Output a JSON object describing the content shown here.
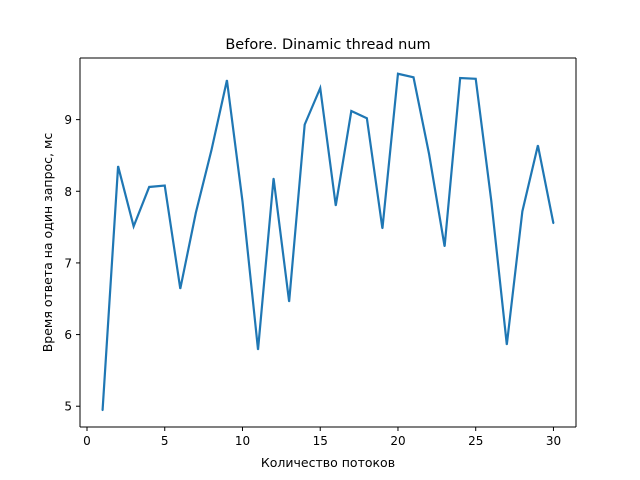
{
  "chart_data": {
    "type": "line",
    "title": "Before. Dinamic thread num",
    "xlabel": "Количество потоков",
    "ylabel": "Время ответа на один запрос, мс",
    "xlim": [
      -0.45,
      31.45
    ],
    "ylim": [
      4.71,
      9.86
    ],
    "xticks": [
      0,
      5,
      10,
      15,
      20,
      25,
      30
    ],
    "yticks": [
      5,
      6,
      7,
      8,
      9
    ],
    "grid": false,
    "line_color": "#1f77b4",
    "series": [
      {
        "x": [
          1,
          2,
          3,
          4,
          5,
          6,
          7,
          8,
          9,
          10,
          11,
          12,
          13,
          14,
          15,
          16,
          17,
          18,
          19,
          20,
          21,
          22,
          23,
          24,
          25,
          26,
          27,
          28,
          29,
          30
        ],
        "values": [
          4.94,
          8.35,
          7.51,
          8.06,
          8.08,
          6.64,
          7.7,
          8.57,
          9.55,
          7.86,
          5.79,
          8.18,
          6.46,
          8.93,
          9.44,
          7.8,
          9.12,
          9.02,
          7.48,
          9.64,
          9.59,
          8.52,
          7.23,
          9.58,
          9.57,
          7.87,
          5.86,
          7.72,
          8.64,
          7.55
        ]
      }
    ]
  }
}
